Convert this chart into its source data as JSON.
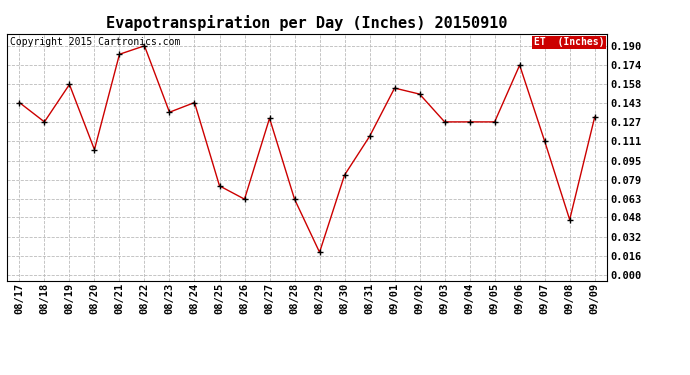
{
  "title": "Evapotranspiration per Day (Inches) 20150910",
  "copyright": "Copyright 2015 Cartronics.com",
  "legend_label": "ET  (Inches)",
  "legend_bg": "#cc0000",
  "legend_text_color": "#ffffff",
  "x_labels": [
    "08/17",
    "08/18",
    "08/19",
    "08/20",
    "08/21",
    "08/22",
    "08/23",
    "08/24",
    "08/25",
    "08/26",
    "08/27",
    "08/28",
    "08/29",
    "08/30",
    "08/31",
    "09/01",
    "09/02",
    "09/03",
    "09/04",
    "09/05",
    "09/06",
    "09/07",
    "09/08",
    "09/09"
  ],
  "y_values": [
    0.143,
    0.127,
    0.158,
    0.104,
    0.183,
    0.19,
    0.135,
    0.143,
    0.074,
    0.063,
    0.13,
    0.063,
    0.019,
    0.083,
    0.115,
    0.155,
    0.15,
    0.127,
    0.127,
    0.127,
    0.174,
    0.111,
    0.046,
    0.131
  ],
  "y_ticks": [
    0.0,
    0.016,
    0.032,
    0.048,
    0.063,
    0.079,
    0.095,
    0.111,
    0.127,
    0.143,
    0.158,
    0.174,
    0.19
  ],
  "line_color": "#cc0000",
  "marker_color": "#000000",
  "grid_color": "#bbbbbb",
  "bg_color": "#ffffff",
  "plot_bg": "#e8e8e8",
  "title_fontsize": 11,
  "tick_fontsize": 7.5,
  "copyright_fontsize": 7
}
